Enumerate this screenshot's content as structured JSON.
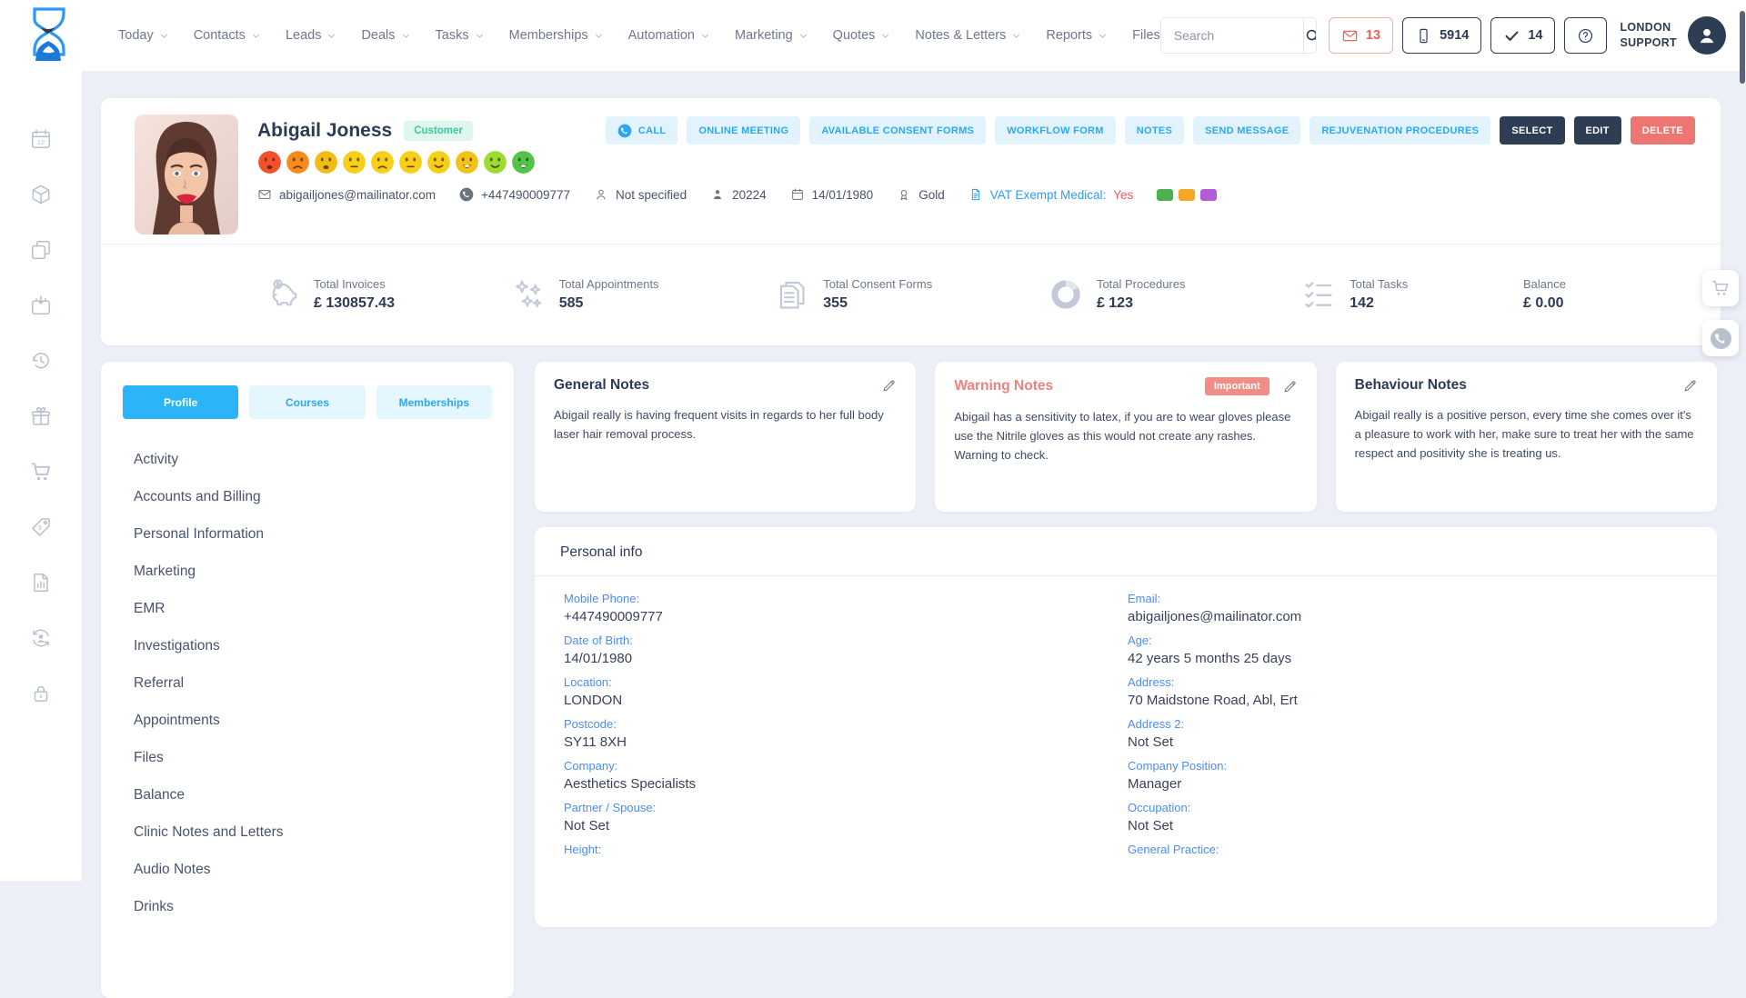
{
  "header": {
    "nav": [
      {
        "label": "Today",
        "dropdown": true
      },
      {
        "label": "Contacts",
        "dropdown": true
      },
      {
        "label": "Leads",
        "dropdown": true
      },
      {
        "label": "Deals",
        "dropdown": true
      },
      {
        "label": "Tasks",
        "dropdown": true
      },
      {
        "label": "Memberships",
        "dropdown": true
      },
      {
        "label": "Automation",
        "dropdown": true
      },
      {
        "label": "Marketing",
        "dropdown": true
      },
      {
        "label": "Quotes",
        "dropdown": true
      },
      {
        "label": "Notes & Letters",
        "dropdown": true
      },
      {
        "label": "Reports",
        "dropdown": true
      },
      {
        "label": "Files",
        "dropdown": false
      }
    ],
    "search": {
      "placeholder": "Search"
    },
    "badges": [
      {
        "icon": "envelope-icon",
        "value": "13",
        "variant": "alert"
      },
      {
        "icon": "mobile-icon",
        "value": "5914",
        "variant": "normal"
      },
      {
        "icon": "check-icon",
        "value": "14",
        "variant": "normal"
      },
      {
        "icon": "help-icon",
        "value": "",
        "variant": "normal"
      }
    ],
    "support_line1": "LONDON",
    "support_line2": "SUPPORT"
  },
  "sidebar_icons": [
    "calendar-12-icon",
    "cube-icon",
    "copy-icon",
    "calendar-import-icon",
    "history-icon",
    "gift-icon",
    "cart-icon",
    "price-tag-icon",
    "report-chart-icon",
    "account-sync-icon",
    "lock-icon"
  ],
  "profile": {
    "name": "Abigail Joness",
    "status_badge": "Customer",
    "mood_scale": [
      {
        "name": "mood-1",
        "color": "#f4502c",
        "mouth": "frown-open"
      },
      {
        "name": "mood-2",
        "color": "#f58b1e",
        "mouth": "frown"
      },
      {
        "name": "mood-3",
        "color": "#f2bd13",
        "mouth": "frown-open"
      },
      {
        "name": "mood-4",
        "color": "#f6cf16",
        "mouth": "neutral"
      },
      {
        "name": "mood-5",
        "color": "#f6cf16",
        "mouth": "frown"
      },
      {
        "name": "mood-6",
        "color": "#f6cf16",
        "mouth": "neutral"
      },
      {
        "name": "mood-7",
        "color": "#f6cf16",
        "mouth": "smile"
      },
      {
        "name": "mood-8",
        "color": "#f2c214",
        "mouth": "smile-open"
      },
      {
        "name": "mood-9",
        "color": "#9bdd2e",
        "mouth": "smile"
      },
      {
        "name": "mood-10",
        "color": "#50c548",
        "mouth": "smile-open"
      }
    ],
    "details": [
      {
        "icon": "envelope-icon",
        "text": "abigailjones@mailinator.com",
        "type": "email"
      },
      {
        "icon": "call-icon",
        "text": "+447490009777",
        "type": "phone"
      },
      {
        "icon": "person-icon",
        "text": "Not specified",
        "type": "plain"
      },
      {
        "icon": "person-badge-icon",
        "text": "20224",
        "type": "plain"
      },
      {
        "icon": "calendar-icon",
        "text": "14/01/1980",
        "type": "plain"
      },
      {
        "icon": "medal-icon",
        "text": "Gold",
        "type": "plain"
      },
      {
        "icon": "vat-doc-icon",
        "text": "VAT Exempt Medical:",
        "highlight": "Yes",
        "type": "vat"
      },
      {
        "type": "colors",
        "colors": [
          "#4caf50",
          "#f5a623",
          "#b35bd9"
        ]
      }
    ],
    "actions": [
      {
        "label": "CALL",
        "variant": "light",
        "icon": "call-icon"
      },
      {
        "label": "ONLINE MEETING",
        "variant": "light"
      },
      {
        "label": "AVAILABLE CONSENT FORMS",
        "variant": "light"
      },
      {
        "label": "WORKFLOW FORM",
        "variant": "light"
      },
      {
        "label": "NOTES",
        "variant": "light"
      },
      {
        "label": "SEND MESSAGE",
        "variant": "light"
      },
      {
        "label": "REJUVENATION PROCEDURES",
        "variant": "light"
      },
      {
        "label": "SELECT",
        "variant": "dark"
      },
      {
        "label": "EDIT",
        "variant": "dark"
      },
      {
        "label": "DELETE",
        "variant": "danger"
      }
    ]
  },
  "stats": [
    {
      "icon": "piggy-bank-icon",
      "label": "Total Invoices",
      "value": "£ 130857.43"
    },
    {
      "icon": "sparkles-icon",
      "label": "Total Appointments",
      "value": "585"
    },
    {
      "icon": "consent-forms-icon",
      "label": "Total Consent Forms",
      "value": "355"
    },
    {
      "icon": "donut-chart-icon",
      "label": "Total Procedures",
      "value": "£ 123"
    },
    {
      "icon": "task-list-icon",
      "label": "Total Tasks",
      "value": "142"
    },
    {
      "icon": null,
      "label": "Balance",
      "value": "£ 0.00"
    }
  ],
  "menu": {
    "tabs": [
      {
        "label": "Profile",
        "active": true
      },
      {
        "label": "Courses",
        "active": false
      },
      {
        "label": "Memberships",
        "active": false
      }
    ],
    "items": [
      "Activity",
      "Accounts and Billing",
      "Personal Information",
      "Marketing",
      "EMR",
      "Investigations",
      "Referral",
      "Appointments",
      "Files",
      "Balance",
      "Clinic Notes and Letters",
      "Audio Notes",
      "Drinks"
    ]
  },
  "notes": [
    {
      "title": "General Notes",
      "variant": "default",
      "badge": null,
      "text": "Abigail really is having frequent visits in regards to her full body laser hair removal process."
    },
    {
      "title": "Warning Notes",
      "variant": "warning",
      "badge": "Important",
      "text": "Abigail has a sensitivity to latex, if you are to wear gloves please use the Nitrile gloves as this would not create any rashes. Warning to check."
    },
    {
      "title": "Behaviour Notes",
      "variant": "default",
      "badge": null,
      "text": "Abigail really is a positive person, every time she comes over it's a pleasure to work with her, make sure to treat her with the same respect and positivity she is treating us."
    }
  ],
  "personal_info": {
    "title": "Personal info",
    "left": [
      {
        "label": "Mobile Phone:",
        "value": "+447490009777"
      },
      {
        "label": "Date of Birth:",
        "value": "14/01/1980"
      },
      {
        "label": "Location:",
        "value": "LONDON"
      },
      {
        "label": "Postcode:",
        "value": "SY11 8XH"
      },
      {
        "label": "Company:",
        "value": "Aesthetics Specialists"
      },
      {
        "label": "Partner / Spouse:",
        "value": "Not Set"
      },
      {
        "label": "Height:",
        "value": ""
      }
    ],
    "right": [
      {
        "label": "Email:",
        "value": "abigailjones@mailinator.com"
      },
      {
        "label": "Age:",
        "value": "42 years 5 months 25 days"
      },
      {
        "label": "Address:",
        "value": "70 Maidstone Road, Abl, Ert"
      },
      {
        "label": "Address 2:",
        "value": "Not Set"
      },
      {
        "label": "Company Position:",
        "value": "Manager"
      },
      {
        "label": "Occupation:",
        "value": "Not Set"
      },
      {
        "label": "General Practice:",
        "value": ""
      }
    ]
  }
}
